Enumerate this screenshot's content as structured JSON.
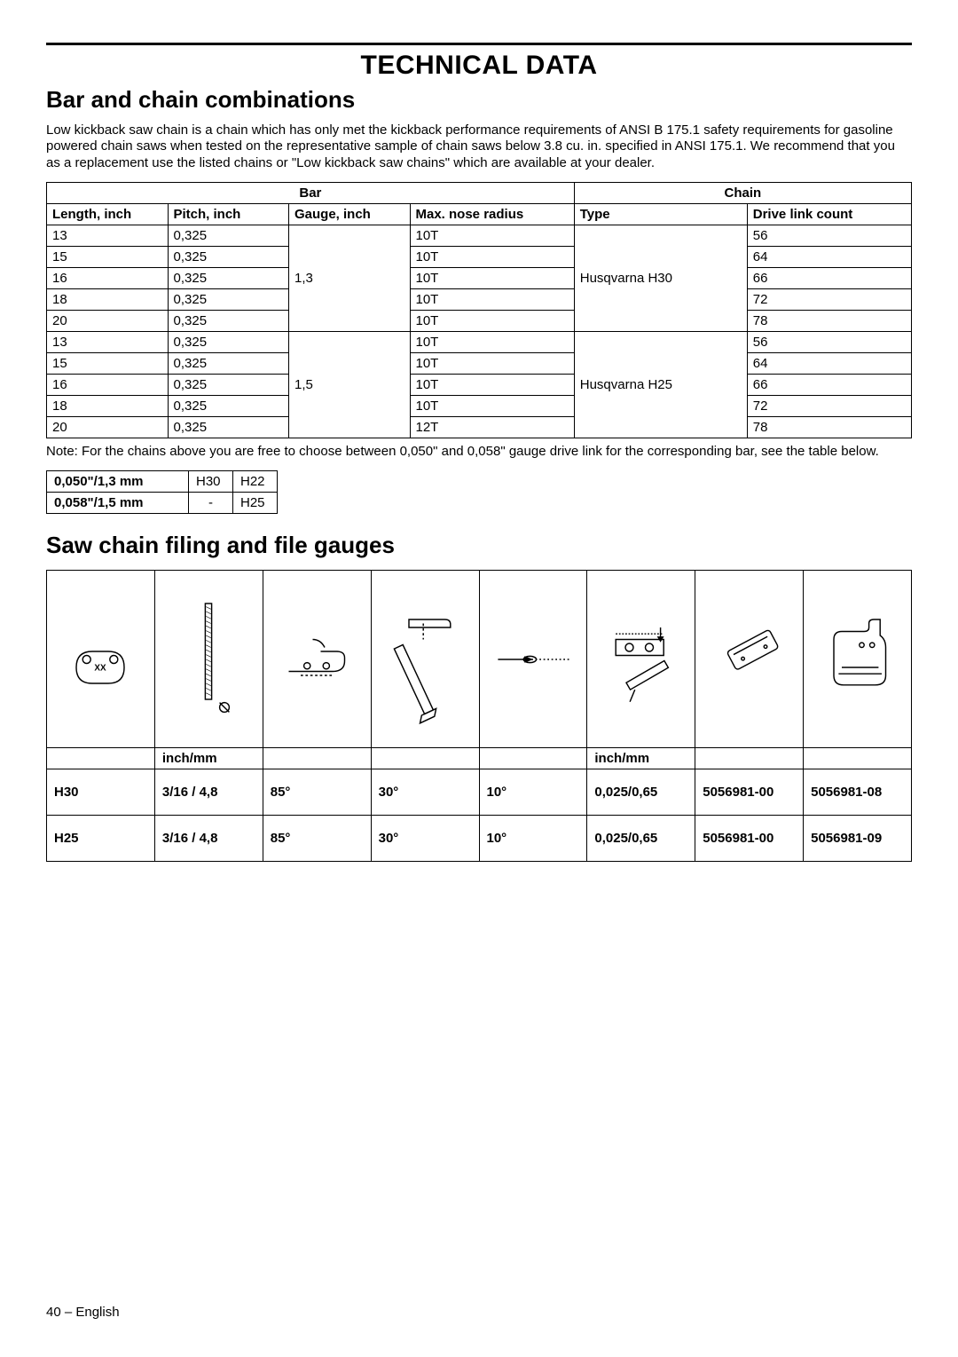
{
  "page": {
    "title": "TECHNICAL DATA",
    "footer": "40 – English"
  },
  "section1": {
    "heading": "Bar and chain combinations",
    "intro": "Low kickback saw chain is a chain which has only met the kickback performance requirements of ANSI B 175.1 safety requirements for gasoline powered chain saws when tested on the representative sample of chain saws below 3.8 cu. in. specified in ANSI 175.1. We recommend that you as a replacement use the listed chains or \"Low kickback saw chains\" which are available at your dealer.",
    "group_headers": {
      "bar": "Bar",
      "chain": "Chain"
    },
    "col_headers": {
      "length": "Length, inch",
      "pitch": "Pitch, inch",
      "gauge": "Gauge, inch",
      "nose": "Max. nose radius",
      "type": "Type",
      "dlc": "Drive link count"
    },
    "blocks": [
      {
        "gauge": "1,3",
        "type": "Husqvarna H30",
        "rows": [
          {
            "length": "13",
            "pitch": "0,325",
            "nose": "10T",
            "dlc": "56"
          },
          {
            "length": "15",
            "pitch": "0,325",
            "nose": "10T",
            "dlc": "64"
          },
          {
            "length": "16",
            "pitch": "0,325",
            "nose": "10T",
            "dlc": "66"
          },
          {
            "length": "18",
            "pitch": "0,325",
            "nose": "10T",
            "dlc": "72"
          },
          {
            "length": "20",
            "pitch": "0,325",
            "nose": "10T",
            "dlc": "78"
          }
        ]
      },
      {
        "gauge": "1,5",
        "type": "Husqvarna H25",
        "rows": [
          {
            "length": "13",
            "pitch": "0,325",
            "nose": "10T",
            "dlc": "56"
          },
          {
            "length": "15",
            "pitch": "0,325",
            "nose": "10T",
            "dlc": "64"
          },
          {
            "length": "16",
            "pitch": "0,325",
            "nose": "10T",
            "dlc": "66"
          },
          {
            "length": "18",
            "pitch": "0,325",
            "nose": "10T",
            "dlc": "72"
          },
          {
            "length": "20",
            "pitch": "0,325",
            "nose": "12T",
            "dlc": "78"
          }
        ]
      }
    ],
    "note": "Note: For the chains above you are free to choose between 0,050\" and 0,058\" gauge drive link for the corresponding bar, see the table below.",
    "gauge_table": {
      "rows": [
        {
          "label": "0,050\"/1,3 mm",
          "c1": "H30",
          "c2": "H22"
        },
        {
          "label": "0,058\"/1,5 mm",
          "c1": "-",
          "c2": "H25"
        }
      ]
    }
  },
  "section2": {
    "heading": "Saw chain filing and file gauges",
    "unit_label": "inch/mm",
    "icons": [
      "chain-link-xx-icon",
      "round-file-diameter-icon",
      "file-angle-side-icon",
      "file-angle-top-icon",
      "flat-file-icon",
      "depth-gauge-height-icon",
      "file-gauge-tool-icon",
      "combi-gauge-icon"
    ],
    "rows": [
      {
        "id": "H30",
        "file": "3/16 / 4,8",
        "a1": "85°",
        "a2": "30°",
        "a3": "10°",
        "depth": "0,025/0,65",
        "p1": "5056981-00",
        "p2": "5056981-08"
      },
      {
        "id": "H25",
        "file": "3/16 / 4,8",
        "a1": "85°",
        "a2": "30°",
        "a3": "10°",
        "depth": "0,025/0,65",
        "p1": "5056981-00",
        "p2": "5056981-09"
      }
    ]
  },
  "colors": {
    "text": "#000000",
    "bg": "#ffffff",
    "rule": "#000000"
  }
}
